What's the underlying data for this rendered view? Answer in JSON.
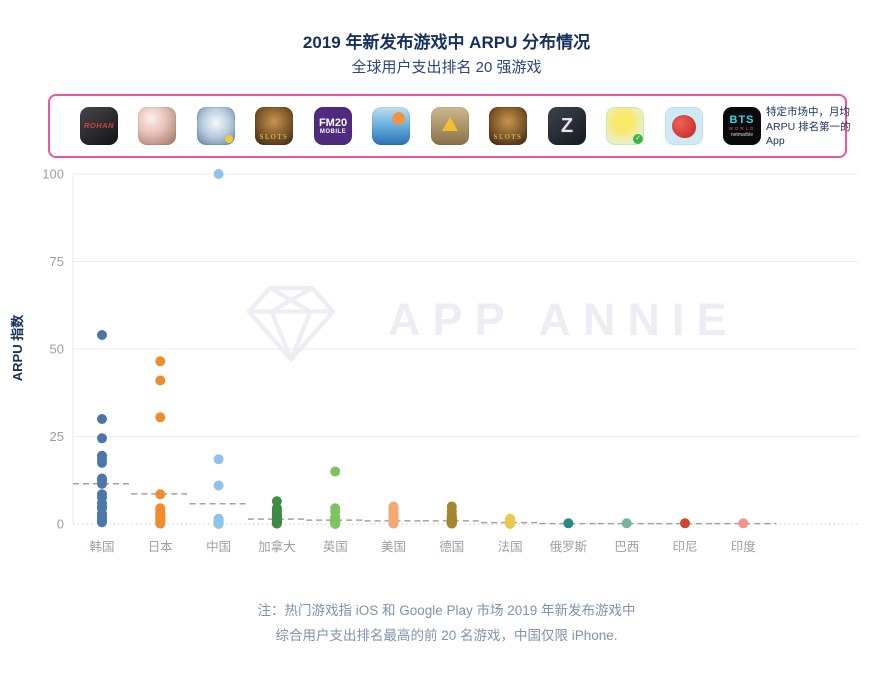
{
  "header": {
    "title": "2019 年新发布游戏中 ARPU 分布情况",
    "subtitle": "全球用户支出排名 20 强游戏"
  },
  "icon_row": {
    "note": "特定市场中，月均 ARPU 排名第一的 App",
    "border_color": "#f0549c",
    "icons": [
      {
        "id": "rohan-m",
        "text": "ROHAN"
      },
      {
        "id": "anime-rpg",
        "text": ""
      },
      {
        "id": "white-tiger",
        "text": ""
      },
      {
        "id": "golden-dragon-slots",
        "text": "SLOTS"
      },
      {
        "id": "fm20-mobile",
        "text": "FM20",
        "text2": "MOBILE"
      },
      {
        "id": "naval-battle",
        "text": ""
      },
      {
        "id": "wasteland-survival",
        "text": ""
      },
      {
        "id": "golden-dragon-slots-2",
        "text": "SLOTS"
      },
      {
        "id": "war-z",
        "text": "Z"
      },
      {
        "id": "casual-blob",
        "text": ""
      },
      {
        "id": "red-dragon",
        "text": ""
      },
      {
        "id": "bts-world",
        "text": "BTS",
        "text2": "WORLD",
        "text3": "netmarble"
      }
    ]
  },
  "chart_data": {
    "type": "scatter",
    "title": "2019 年新发布游戏中 ARPU 分布情况",
    "subtitle": "全球用户支出排名 20 强游戏",
    "ylabel": "ARPU 指数",
    "ylim": [
      0,
      100
    ],
    "yticks": [
      0,
      25,
      50,
      75,
      100
    ],
    "grid": "horizontal",
    "mean_line_style": "dashed",
    "categories": [
      "韩国",
      "日本",
      "中国",
      "加拿大",
      "英国",
      "美国",
      "德国",
      "法国",
      "俄罗斯",
      "巴西",
      "印尼",
      "印度"
    ],
    "series": [
      {
        "name": "韩国",
        "color": "#4a77a8",
        "mean": 11.5,
        "values": [
          54,
          30,
          24.5,
          19.5,
          18.5,
          17.5,
          13,
          12.5,
          11.5,
          8.5,
          7.5,
          6,
          5,
          4.5,
          3,
          2.5,
          2,
          1.5,
          1,
          0.5
        ]
      },
      {
        "name": "日本",
        "color": "#f08c2e",
        "mean": 8.6,
        "values": [
          46.5,
          41,
          30.5,
          8.5,
          4.5,
          4,
          3.5,
          3,
          2.8,
          2.5,
          2.2,
          2,
          1.8,
          1.5,
          1.2,
          1,
          0.8,
          0.5,
          0.3,
          0.1
        ]
      },
      {
        "name": "中国",
        "color": "#8fc4e8",
        "mean": 5.8,
        "values": [
          100,
          18.5,
          11,
          1.5,
          1.2,
          1,
          0.9,
          0.8,
          0.7,
          0.6,
          0.5,
          0.5,
          0.4,
          0.4,
          0.3,
          0.3,
          0.2,
          0.2,
          0.1,
          0
        ]
      },
      {
        "name": "加拿大",
        "color": "#3e8c44",
        "mean": 1.4,
        "values": [
          6.5,
          4.5,
          4,
          3.5,
          3,
          2.8,
          2.5,
          2.2,
          2,
          1.8,
          1.5,
          1.2,
          1,
          0.8,
          0.6,
          0.5,
          0.4,
          0.3,
          0.2,
          0.1
        ]
      },
      {
        "name": "英国",
        "color": "#7dc360",
        "mean": 1.1,
        "values": [
          15,
          4.5,
          3.5,
          2,
          1.8,
          1.5,
          1.2,
          1,
          0.9,
          0.8,
          0.7,
          0.6,
          0.5,
          0.4,
          0.3,
          0.3,
          0.2,
          0.2,
          0.1,
          0
        ]
      },
      {
        "name": "美国",
        "color": "#f5a873",
        "mean": 0.9,
        "values": [
          5,
          4.5,
          4.2,
          4,
          3.8,
          3.5,
          3.2,
          3,
          2.8,
          2.5,
          2.2,
          2,
          1.8,
          1.5,
          1.2,
          1,
          0.8,
          0.5,
          0.3,
          0.1
        ]
      },
      {
        "name": "德国",
        "color": "#a3862e",
        "mean": 0.9,
        "values": [
          5,
          3.7,
          2.5,
          2.3,
          2.1,
          2,
          1.8,
          1.6,
          1.5,
          1.3,
          1.2,
          1,
          0.9,
          0.8,
          0.6,
          0.5,
          0.4,
          0.3,
          0.2,
          0.1
        ]
      },
      {
        "name": "法国",
        "color": "#eac94f",
        "mean": 0.4,
        "values": [
          1.5,
          1.3,
          1.2,
          1.1,
          1,
          0.9,
          0.8,
          0.7,
          0.7,
          0.6,
          0.5,
          0.5,
          0.4,
          0.4,
          0.3,
          0.3,
          0.2,
          0.2,
          0.1,
          0
        ]
      },
      {
        "name": "俄罗斯",
        "color": "#2b8a80",
        "mean": 0.1,
        "values": [
          0.2
        ]
      },
      {
        "name": "巴西",
        "color": "#72b5a2",
        "mean": 0.1,
        "values": [
          0.2
        ]
      },
      {
        "name": "印尼",
        "color": "#cf4733",
        "mean": 0.1,
        "values": [
          0.2
        ]
      },
      {
        "name": "印度",
        "color": "#f2928b",
        "mean": 0.1,
        "values": [
          0.2
        ]
      }
    ]
  },
  "watermark": {
    "text": "APP ANNIE"
  },
  "footer": {
    "line1": "注：热门游戏指 iOS 和 Google Play 市场 2019 年新发布游戏中",
    "line2": "综合用户支出排名最高的前 20 名游戏，中国仅限 iPhone."
  }
}
